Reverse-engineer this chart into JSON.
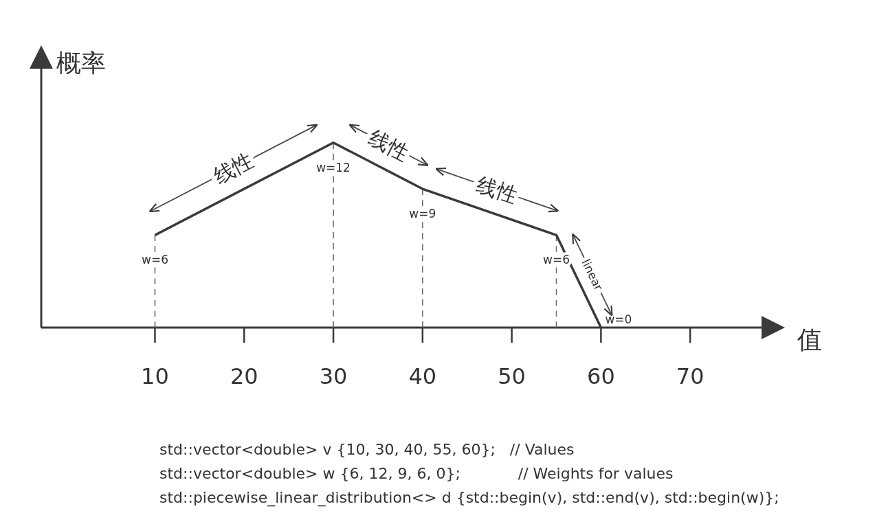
{
  "chart_data": {
    "type": "line",
    "xlabel": "值",
    "ylabel": "概率",
    "series": [
      {
        "x": [
          10,
          30,
          40,
          55,
          60
        ],
        "values": [
          6,
          12,
          9,
          6,
          0
        ],
        "value_labels": [
          "w=6",
          "w=12",
          "w=9",
          "w=6",
          "w=0"
        ],
        "color": "#3a3a3a",
        "line_style": "solid"
      },
      {
        "x": [
          10,
          10
        ],
        "values": [
          0,
          6
        ],
        "color": "#5a5a5a",
        "line_style": "dashed"
      },
      {
        "x": [
          30,
          30
        ],
        "values": [
          0,
          12
        ],
        "color": "#606060",
        "line_style": "dashed"
      },
      {
        "x": [
          40,
          40
        ],
        "values": [
          0,
          9
        ],
        "color": "#666666",
        "line_style": "dashed"
      },
      {
        "x": [
          55,
          55
        ],
        "values": [
          0,
          6
        ],
        "color": "#6c6c6c",
        "line_style": "dashed"
      }
    ],
    "xlim": [
      -2.75,
      78
    ],
    "xticks": [
      10,
      20,
      30,
      40,
      50,
      60,
      70
    ],
    "marker": "none",
    "tick_labels": "x",
    "annotations": [
      "线性",
      "线性",
      "线性",
      "linear",
      "std::vector<double> v {10, 30, 40, 55, 60};   // Values",
      "std::vector<double> w {6, 12, 9, 6, 0};            // Weights for values",
      "std::piecewise_linear_distribution<> d {std::begin(v), std::end(v), std::begin(w)};"
    ]
  }
}
